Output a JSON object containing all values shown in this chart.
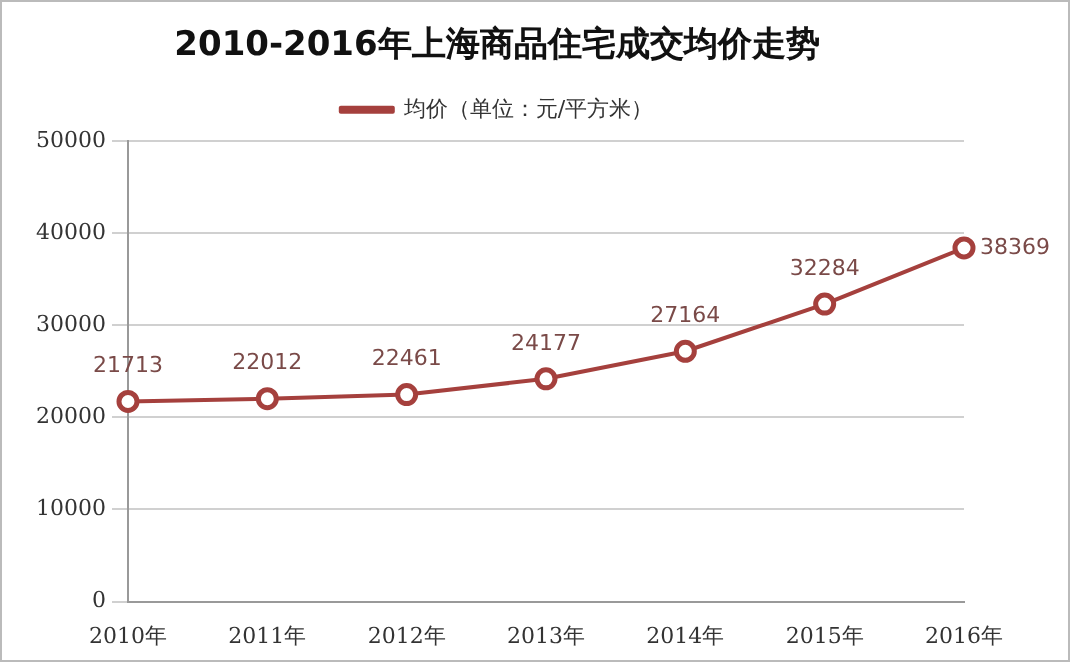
{
  "chart_data": {
    "type": "line",
    "title": "2010-2016年上海商品住宅成交均价走势",
    "categories": [
      "2010年",
      "2011年",
      "2012年",
      "2013年",
      "2014年",
      "2015年",
      "2016年"
    ],
    "series": [
      {
        "name": "均价（单位：元/平方米）",
        "color": "#a5403d",
        "values": [
          21713,
          22012,
          22461,
          24177,
          27164,
          32284,
          38369
        ]
      }
    ],
    "ylim": [
      0,
      50000
    ],
    "yticks": [
      0,
      10000,
      20000,
      30000,
      40000,
      50000
    ],
    "grid": "y",
    "legend": "top",
    "marker": "circle",
    "line_style": "solid",
    "data_labels": true
  }
}
